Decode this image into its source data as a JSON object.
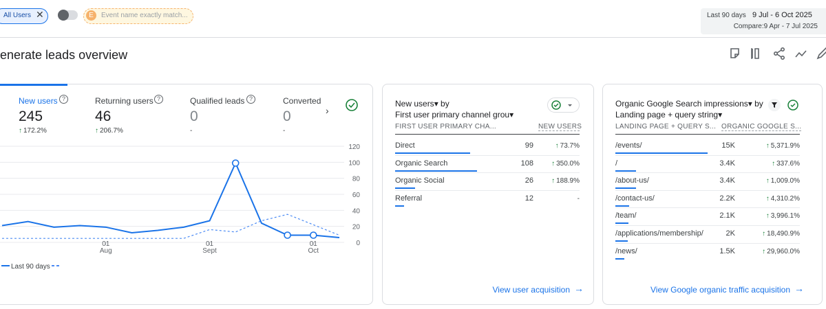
{
  "filters": {
    "audience": "All Users",
    "event_badge": "E",
    "event_filter": "Event name exactly match..."
  },
  "date_range": {
    "label": "Last 90 days",
    "range": "9 Jul - 6 Oct 2025",
    "compare": "Compare:9 Apr - 7 Jul 2025"
  },
  "page_title": "enerate leads overview",
  "tabs": [
    {
      "label": "New users",
      "value": "245",
      "change": "172.2%"
    },
    {
      "label": "Returning users",
      "value": "46",
      "change": "206.7%"
    },
    {
      "label": "Qualified leads",
      "value": "0",
      "change": "-"
    },
    {
      "label": "Converted",
      "value": "0",
      "change": "-"
    }
  ],
  "chart_data": {
    "type": "line",
    "categories": [
      null,
      null,
      null,
      null,
      "01 Aug",
      null,
      null,
      null,
      "01 Sept",
      null,
      null,
      null,
      "01 Oct",
      null
    ],
    "series": [
      {
        "name": "Last 90 days",
        "color": "#1a73e8",
        "dashed": false,
        "values": [
          21,
          26,
          19,
          21,
          19,
          12,
          15,
          19,
          27,
          99,
          24,
          9,
          9,
          6
        ]
      },
      {
        "color": "#4a8af4",
        "dashed": true,
        "values": [
          5,
          5,
          5,
          5,
          5,
          5,
          5,
          5,
          16,
          13,
          27,
          35,
          22,
          9
        ]
      }
    ],
    "highlighted_points": [
      9,
      11,
      12
    ],
    "ylim": [
      0,
      120
    ],
    "yticks": [
      0,
      20,
      40,
      60,
      80,
      100,
      120
    ],
    "grid": true
  },
  "channel_card": {
    "metric": "New users",
    "by": "by",
    "dimension": "First user primary channel grou",
    "column_headers": [
      "FIRST USER PRIMARY CHA...",
      "NEW USERS"
    ],
    "rows": [
      "Direct",
      "Organic Search",
      "Organic Social",
      "Referral"
    ],
    "values": [
      99,
      108,
      26,
      12
    ],
    "changes": [
      "73.7%",
      "350.0%",
      "188.9%",
      "-"
    ],
    "link": "View user acquisition"
  },
  "search_card": {
    "metric": "Organic Google Search impressions",
    "by": "by",
    "dimension": "Landing page + query string",
    "column_headers": [
      "LANDING PAGE + QUERY S...",
      "ORGANIC GOOGLE S..."
    ],
    "rows": [
      "/events/",
      "/",
      "/about-us/",
      "/contact-us/",
      "/team/",
      "/applications/membership/",
      "/news/"
    ],
    "values": [
      15000,
      3400,
      3400,
      2200,
      2100,
      2000,
      1500
    ],
    "value_labels": [
      "15K",
      "3.4K",
      "3.4K",
      "2.2K",
      "2.1K",
      "2K",
      "1.5K"
    ],
    "changes": [
      "5,371.9%",
      "337.6%",
      "1,009.0%",
      "4,310.2%",
      "3,996.1%",
      "18,490.9%",
      "29,960.0%"
    ],
    "link": "View Google organic traffic acquisition"
  }
}
